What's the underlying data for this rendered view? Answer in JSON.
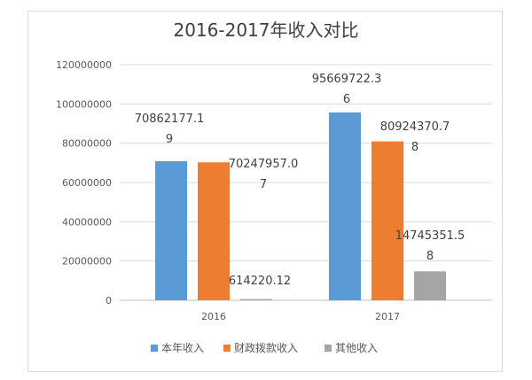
{
  "chart_data": {
    "type": "bar",
    "title": "2016-2017年收入对比",
    "categories": [
      "2016",
      "2017"
    ],
    "series": [
      {
        "name": "本年收入",
        "values": [
          70862177.19,
          95669722.36
        ],
        "labels": [
          [
            "70862177.1",
            "9"
          ],
          [
            "95669722.3",
            "6"
          ]
        ],
        "color": "#5b9bd5"
      },
      {
        "name": "财政拨款收入",
        "values": [
          70247957.07,
          80924370.78
        ],
        "labels": [
          [
            "70247957.0",
            "7"
          ],
          [
            "80924370.7",
            "8"
          ]
        ],
        "color": "#ed7d31"
      },
      {
        "name": "其他收入",
        "values": [
          614220.12,
          14745351.58
        ],
        "labels": [
          [
            "614220.12"
          ],
          [
            "14745351.5",
            "8"
          ]
        ],
        "color": "#a5a5a5"
      }
    ],
    "y_ticks": [
      "0",
      "20000000",
      "40000000",
      "60000000",
      "80000000",
      "100000000",
      "120000000"
    ],
    "ylim": [
      0,
      120000000
    ],
    "grid": true,
    "legend_position": "bottom"
  }
}
